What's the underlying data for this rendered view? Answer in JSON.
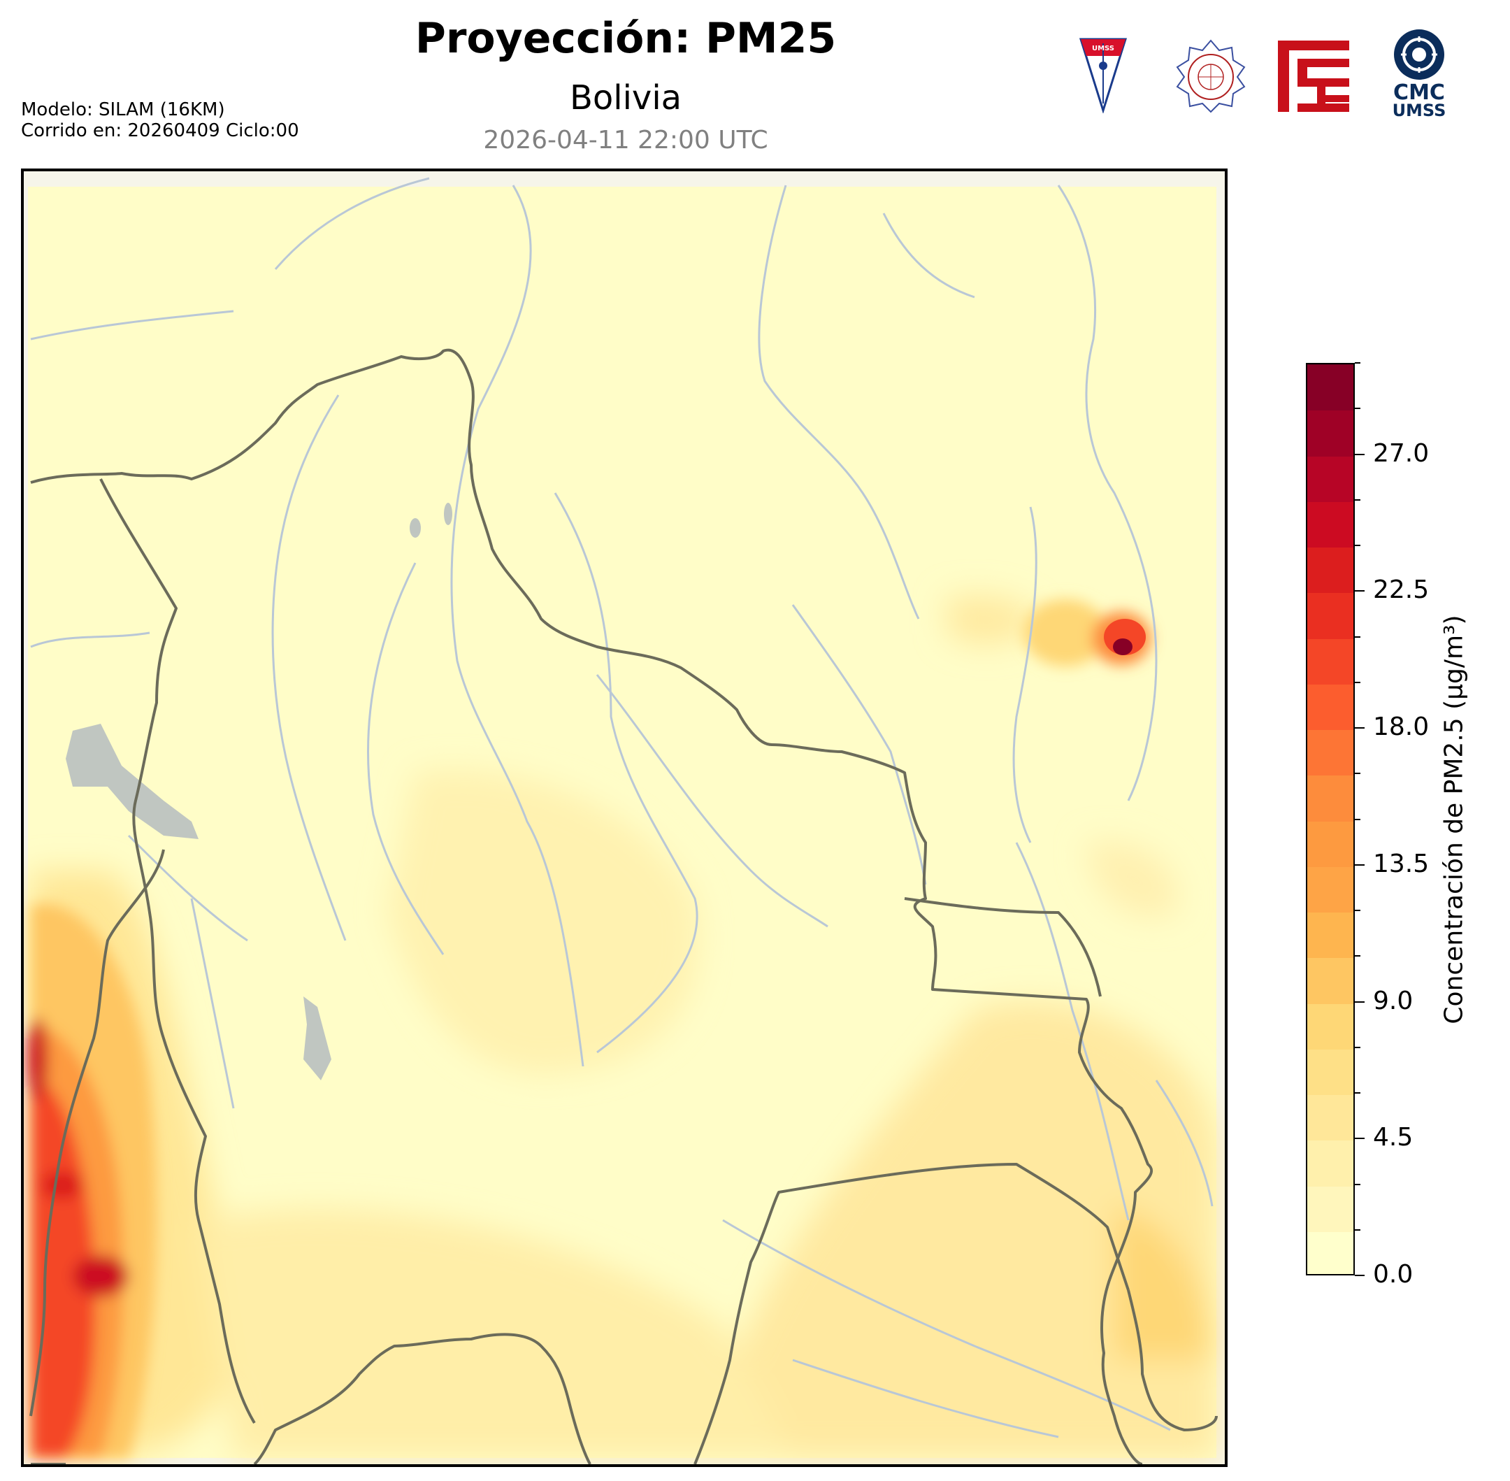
{
  "header": {
    "title": "Proyección: PM25",
    "subtitle": "Bolivia",
    "datetime": "2026-04-11 22:00 UTC",
    "model_line": "Modelo: SILAM (16KM)",
    "run_line": "Corrido en: 20260409 Ciclo:00"
  },
  "logos": {
    "umss_badge_text": "UMSS",
    "cmc_text": "CMC",
    "cmc_sub": "UMSS",
    "colors": {
      "umss_red": "#d8102b",
      "umss_blue": "#1a3b8c",
      "physics_dept": "#b02020",
      "red_logo": "#c8101a",
      "cmc_blue": "#0b2d5b"
    }
  },
  "map": {
    "region": "Bolivia",
    "colors": {
      "background": "#fffdc8",
      "border": "#6b6b5a",
      "rivers": "#b9c7d6",
      "lakes": "#b9c0c0"
    }
  },
  "colorbar": {
    "label": "Concentración de PM2.5 (µg/m³)",
    "min": 0.0,
    "max": 30.0,
    "step": 1.5,
    "tick_labels": [
      "0.0",
      "4.5",
      "9.0",
      "13.5",
      "18.0",
      "22.5",
      "27.0"
    ],
    "tick_values": [
      0.0,
      4.5,
      9.0,
      13.5,
      18.0,
      22.5,
      27.0
    ],
    "levels": [
      "#ffffcc",
      "#fff6bc",
      "#fff0ac",
      "#ffe799",
      "#fee087",
      "#fed776",
      "#fec662",
      "#feb54f",
      "#fea446",
      "#fd9a40",
      "#fd8c3c",
      "#fd7535",
      "#fc5d2e",
      "#f44627",
      "#ea2f21",
      "#dc1e1e",
      "#cc0b22",
      "#b70526",
      "#9f0126",
      "#870026",
      "#6e0020"
    ]
  }
}
